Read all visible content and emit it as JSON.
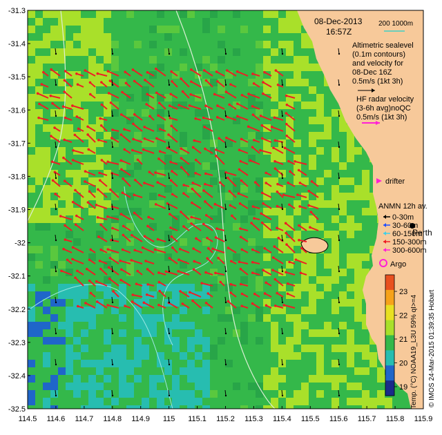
{
  "map": {
    "lon_ticks": [
      "114.5",
      "114.6",
      "114.7",
      "114.8",
      "114.9",
      "115",
      "115.1",
      "115.2",
      "115.3",
      "115.4",
      "115.5",
      "115.6",
      "115.7",
      "115.8",
      "115.9"
    ],
    "lat_ticks": [
      "-31.3",
      "-31.4",
      "-31.5",
      "-31.6",
      "-31.7",
      "-31.8",
      "-31.9",
      "-32",
      "-32.1",
      "-32.2",
      "-32.3",
      "-32.4",
      "-32.5"
    ],
    "lon_range": [
      114.5,
      115.9
    ],
    "lat_range": [
      -32.5,
      -31.3
    ],
    "colors": {
      "land": "#f7c99a",
      "sst_main": "#34b84a",
      "sst_warm": "#a9e02a",
      "sst_cool": "#27bdb0",
      "sst_cold": "#1f66c9",
      "radar_arrow": "#ee1d24",
      "drifter": "#ff1fd6",
      "contour": "#9ee8e4"
    }
  },
  "header": {
    "date": "08-Dec-2013",
    "time": "16:57Z",
    "isobath_label": "200   1000m"
  },
  "legend": {
    "sealevel_lines": [
      "Altimetric sealevel",
      "(0.1m contours)",
      "and velocity for",
      "08-Dec 16Z",
      "0.5m/s (1kt 3h)"
    ],
    "radar_lines": [
      "HF radar velocity",
      "(3-6h avg)noQC",
      "0.5m/s (1kt 3h)"
    ],
    "drifter": "drifter",
    "anmn_title": "ANMN 12h av.",
    "anmn_depths": [
      "0-30m",
      "30-60m",
      "60-150m",
      "150-300m",
      "300-600m"
    ],
    "argo": "Argo",
    "city": "Perth"
  },
  "colorbar": {
    "ticks": [
      "19",
      "20",
      "21",
      "22",
      "23"
    ],
    "label": "Temp. (°C) NOAA19_L3U 59% qI>=4"
  },
  "credit": "© IMOS 24-Mar-2015 01:39:35 Hobart",
  "icons": [
    "arrow-icon",
    "circle-icon"
  ]
}
